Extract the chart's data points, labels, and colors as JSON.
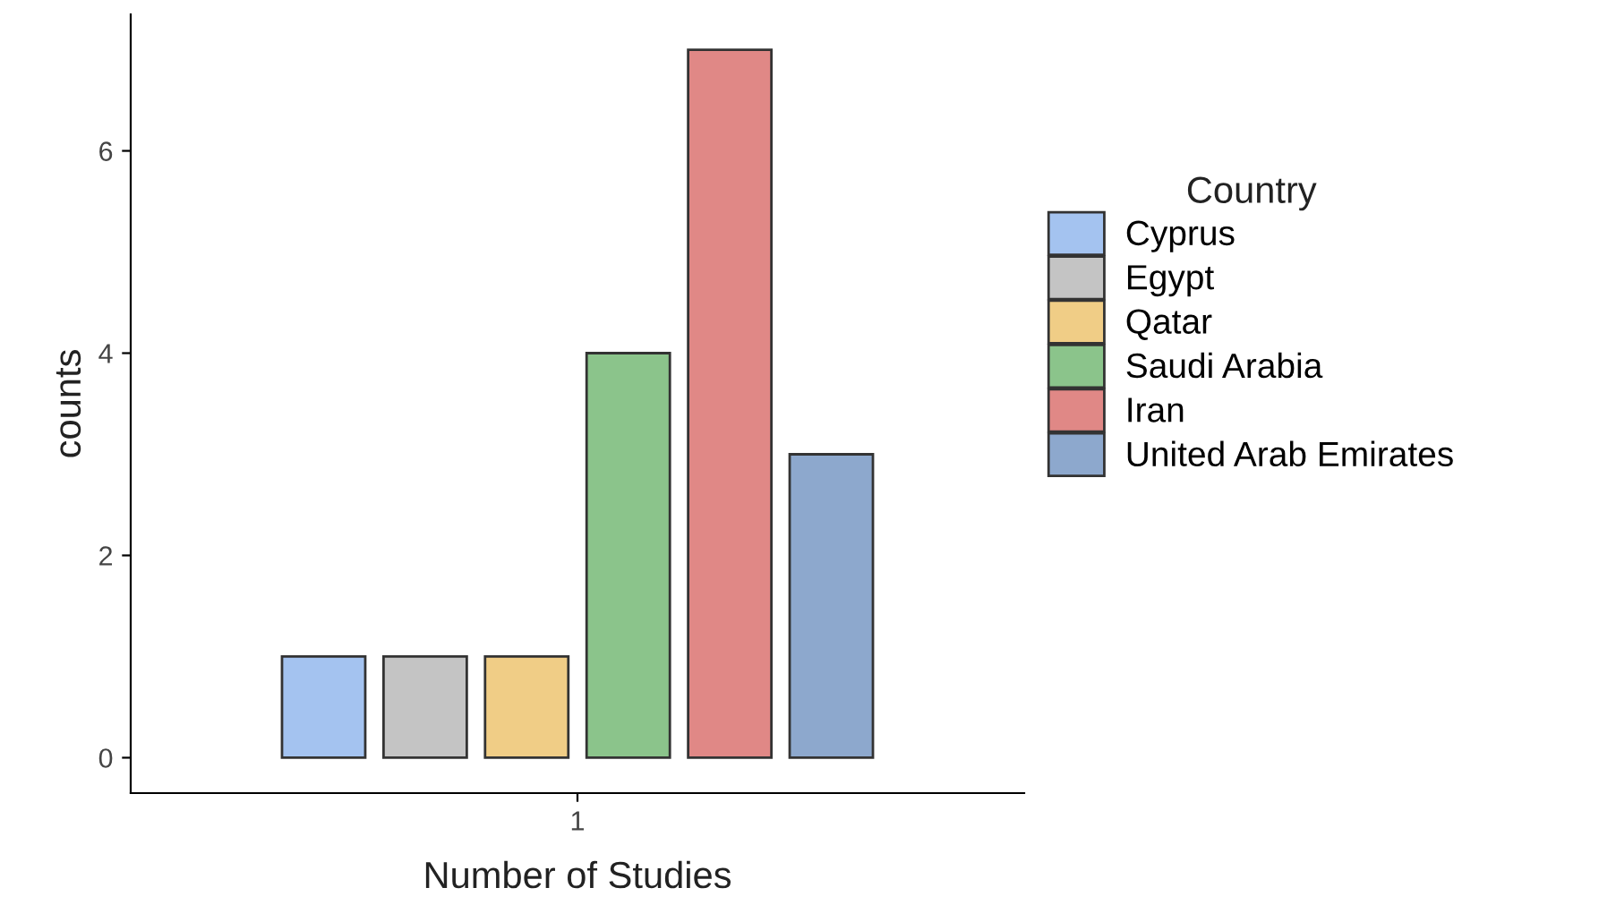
{
  "chart_data": {
    "type": "bar",
    "xlabel": "Number of Studies",
    "ylabel": "counts",
    "legend_title": "Country",
    "categories": [
      "1"
    ],
    "series": [
      {
        "name": "Cyprus",
        "color": "#a4c3f0",
        "values": [
          1
        ]
      },
      {
        "name": "Egypt",
        "color": "#c4c4c4",
        "values": [
          1
        ]
      },
      {
        "name": "Qatar",
        "color": "#f0cd86",
        "values": [
          1
        ]
      },
      {
        "name": "Saudi Arabia",
        "color": "#8bc48b",
        "values": [
          4
        ]
      },
      {
        "name": "Iran",
        "color": "#e08886",
        "values": [
          7
        ]
      },
      {
        "name": "United Arab Emirates",
        "color": "#8da8cd",
        "values": [
          3
        ]
      }
    ],
    "ylim": [
      -0.35,
      7.35
    ],
    "yticks": [
      0,
      2,
      4,
      6
    ],
    "grid": false,
    "legend": "right"
  }
}
